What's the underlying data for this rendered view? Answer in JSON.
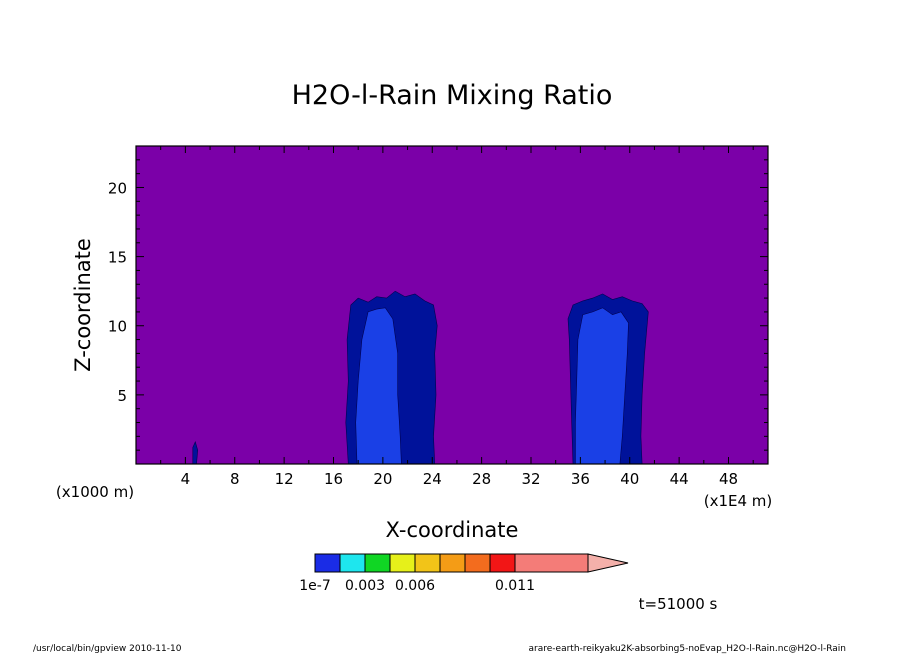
{
  "chart_data": {
    "type": "heatmap",
    "title": "H2O-l-Rain Mixing Ratio",
    "xlabel": "X-coordinate",
    "ylabel": "Z-coordinate",
    "x_unit": "(x1E4 m)",
    "y_unit": "(x1000 m)",
    "xlim": [
      0,
      51.2
    ],
    "ylim": [
      0,
      23
    ],
    "x_ticks": [
      4,
      8,
      12,
      16,
      20,
      24,
      28,
      32,
      36,
      40,
      44,
      48
    ],
    "y_ticks": [
      5,
      10,
      15,
      20
    ],
    "background_color": "#7b00a8",
    "colorbar": {
      "colors": [
        "#1a2ce6",
        "#1ee6ee",
        "#10d624",
        "#e6f01a",
        "#f2c418",
        "#f49c16",
        "#f36c1e",
        "#f21616",
        "#f47c78",
        "#f4b0aa"
      ],
      "tick_labels": [
        "1e-7",
        "0.003",
        "0.006",
        "0.011"
      ],
      "tick_index": [
        0,
        2,
        4,
        8
      ]
    },
    "regions": [
      {
        "level": "outer",
        "color": "#00129a",
        "polygon": [
          [
            17.2,
            0
          ],
          [
            17.0,
            3
          ],
          [
            17.2,
            6
          ],
          [
            17.1,
            9
          ],
          [
            17.4,
            11.5
          ],
          [
            18,
            12
          ],
          [
            18.8,
            11.7
          ],
          [
            19.5,
            12.1
          ],
          [
            20.3,
            12
          ],
          [
            21,
            12.5
          ],
          [
            21.8,
            12.1
          ],
          [
            22.6,
            12.3
          ],
          [
            23.4,
            11.8
          ],
          [
            24.1,
            11.5
          ],
          [
            24.4,
            10
          ],
          [
            24.2,
            8
          ],
          [
            24.3,
            5
          ],
          [
            24.1,
            2
          ],
          [
            24.2,
            0
          ]
        ]
      },
      {
        "level": "outer",
        "color": "#00129a",
        "polygon": [
          [
            35.4,
            0
          ],
          [
            35.3,
            3
          ],
          [
            35.2,
            6
          ],
          [
            35.1,
            9
          ],
          [
            35.0,
            10.5
          ],
          [
            35.4,
            11.5
          ],
          [
            36.2,
            11.8
          ],
          [
            37,
            12
          ],
          [
            37.8,
            12.3
          ],
          [
            38.6,
            11.9
          ],
          [
            39.4,
            12.1
          ],
          [
            40.2,
            11.8
          ],
          [
            41,
            11.6
          ],
          [
            41.5,
            11
          ],
          [
            41.2,
            8
          ],
          [
            41.0,
            5
          ],
          [
            40.9,
            2
          ],
          [
            41.0,
            0
          ]
        ]
      },
      {
        "level": "inner",
        "color": "#1a40e6",
        "polygon": [
          [
            17.9,
            0
          ],
          [
            17.8,
            3
          ],
          [
            18.0,
            6
          ],
          [
            18.3,
            9
          ],
          [
            18.8,
            11
          ],
          [
            19.5,
            11.2
          ],
          [
            20.2,
            11.3
          ],
          [
            20.8,
            10.5
          ],
          [
            21.2,
            8
          ],
          [
            21.2,
            5
          ],
          [
            21.4,
            2
          ],
          [
            21.5,
            0
          ]
        ]
      },
      {
        "level": "inner",
        "color": "#1a40e6",
        "polygon": [
          [
            35.6,
            0
          ],
          [
            35.6,
            3
          ],
          [
            35.7,
            6
          ],
          [
            35.8,
            9
          ],
          [
            36.2,
            10.8
          ],
          [
            37,
            11
          ],
          [
            37.8,
            11.3
          ],
          [
            38.6,
            10.8
          ],
          [
            39.3,
            11
          ],
          [
            39.9,
            10.2
          ],
          [
            39.8,
            8
          ],
          [
            39.6,
            5
          ],
          [
            39.4,
            2
          ],
          [
            39.2,
            0
          ]
        ]
      },
      {
        "level": "outer",
        "color": "#00129a",
        "polygon": [
          [
            4.6,
            0
          ],
          [
            4.6,
            1.2
          ],
          [
            4.8,
            1.6
          ],
          [
            5.0,
            1.0
          ],
          [
            4.9,
            0
          ]
        ]
      }
    ],
    "time_label": "t=51000 s"
  },
  "footer": {
    "left": "/usr/local/bin/gpview   2010-11-10",
    "right": "arare-earth-reikyaku2K-absorbing5-noEvap_H2O-l-Rain.nc@H2O-l-Rain"
  }
}
